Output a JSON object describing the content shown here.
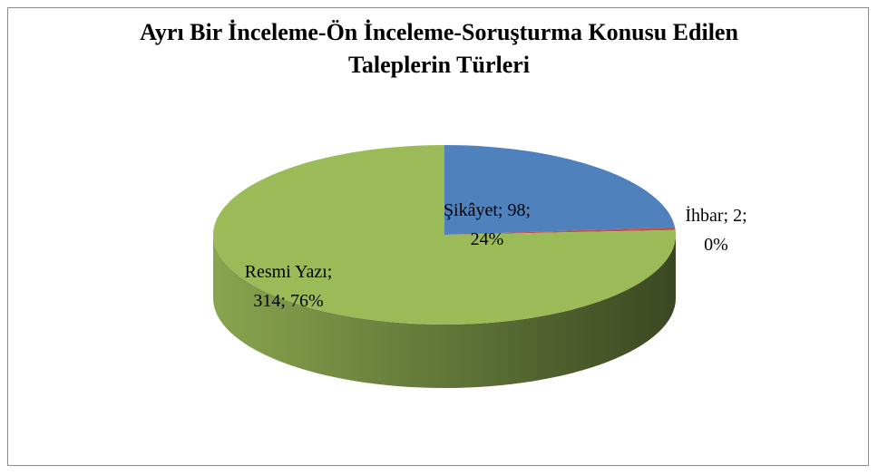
{
  "chart_data": {
    "type": "pie",
    "title": "Ayrı Bir İnceleme-Ön İnceleme-Soruşturma Konusu Edilen Taleplerin Türleri",
    "values": [
      98,
      2,
      314
    ],
    "value_labels": [
      "Şikâyet; 98; 24%",
      "İhbar; 2; 0%",
      "Resmi Yazı; 314; 76%"
    ],
    "colors": [
      "#4f81bd",
      "#c0504d",
      "#9bbb59"
    ]
  }
}
